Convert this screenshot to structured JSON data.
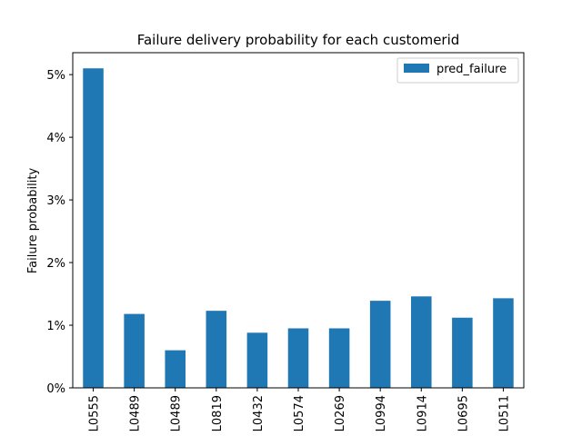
{
  "chart_data": {
    "type": "bar",
    "title": "Failure delivery probability for each customerid",
    "xlabel": "",
    "ylabel": "Failure probability",
    "categories": [
      "L0555",
      "L0489",
      "L0489",
      "L0819",
      "L0432",
      "L0574",
      "L0269",
      "L0994",
      "L0914",
      "L0695",
      "L0511"
    ],
    "series": [
      {
        "name": "pred_failure",
        "color": "#1f77b4",
        "values": [
          0.051,
          0.0118,
          0.006,
          0.0123,
          0.0088,
          0.0095,
          0.0095,
          0.0139,
          0.0146,
          0.0112,
          0.0143
        ]
      }
    ],
    "ylim": [
      0,
      0.0535
    ],
    "yticks": [
      0,
      0.01,
      0.02,
      0.03,
      0.04,
      0.05
    ],
    "ytick_labels": [
      "0%",
      "1%",
      "2%",
      "3%",
      "4%",
      "5%"
    ],
    "grid": false,
    "legend_position": "top-right"
  }
}
